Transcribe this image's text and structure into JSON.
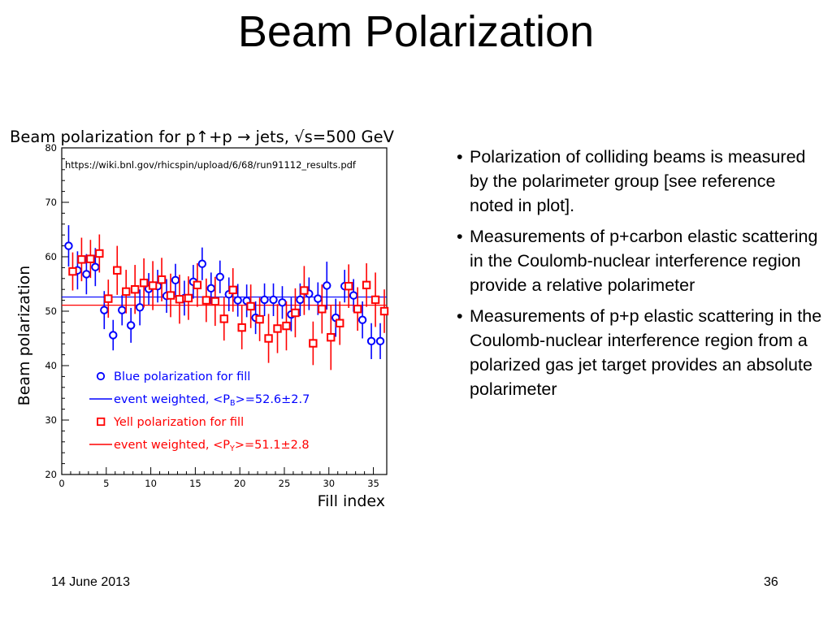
{
  "slide": {
    "title": "Beam Polarization",
    "footer_date": "14 June 2013",
    "page_number": "36"
  },
  "bullets": [
    "Polarization of colliding beams is measured by the polarimeter group [see reference noted in plot].",
    "Measurements of p+carbon elastic scattering in the Coulomb-nuclear interference region provide a relative polarimeter",
    "Measurements of p+p elastic scattering in the Coulomb-nuclear interference region from a polarized gas jet target provides an absolute polarimeter"
  ],
  "chart_data": {
    "type": "scatter",
    "title": "Beam polarization for p↑+p → jets, √s=500 GeV",
    "annotation": "https://wiki.bnl.gov/rhicspin/upload/6/68/run91112_results.pdf",
    "xlabel": "Fill index",
    "ylabel": "Beam polarization",
    "xlim": [
      0,
      36.5
    ],
    "ylim": [
      20,
      80
    ],
    "xticks": [
      0,
      5,
      10,
      15,
      20,
      25,
      30,
      35
    ],
    "yticks": [
      20,
      30,
      40,
      50,
      60,
      70,
      80
    ],
    "legend_placement": "bottom-left",
    "series": [
      {
        "name": "Blue polarization for fill",
        "color": "#0000ff",
        "marker": "circle",
        "x": [
          1,
          2,
          3,
          4,
          5,
          6,
          7,
          8,
          9,
          10,
          11,
          12,
          13,
          14,
          15,
          16,
          17,
          18,
          19,
          20,
          21,
          22,
          23,
          24,
          25,
          26,
          27,
          28,
          29,
          30,
          31,
          32,
          33,
          34,
          35,
          36
        ],
        "y": [
          62.0,
          57.5,
          56.8,
          58.1,
          50.2,
          45.6,
          50.2,
          47.4,
          50.7,
          54.1,
          54.6,
          52.8,
          55.7,
          52.4,
          55.4,
          58.7,
          54.2,
          56.3,
          53.1,
          52.0,
          51.9,
          48.8,
          52.1,
          52.1,
          51.6,
          49.4,
          52.1,
          53.2,
          52.3,
          54.7,
          48.8,
          54.6,
          52.9,
          48.4,
          44.5,
          44.5
        ],
        "err": [
          3.8,
          3.5,
          3.7,
          3.5,
          3.5,
          2.8,
          2.8,
          3.2,
          3.3,
          2.9,
          3.0,
          3.1,
          3.0,
          3.2,
          3.1,
          3.0,
          2.9,
          3.0,
          3.1,
          3.0,
          3.0,
          3.0,
          3.0,
          3.0,
          3.0,
          3.1,
          3.0,
          3.0,
          3.0,
          4.4,
          3.5,
          3.0,
          3.0,
          3.4,
          3.3,
          3.3
        ]
      },
      {
        "name": "Yell polarization for fill",
        "color": "#ff0000",
        "marker": "square",
        "x": [
          1,
          2,
          3,
          4,
          5,
          6,
          7,
          8,
          9,
          10,
          11,
          12,
          13,
          14,
          15,
          16,
          17,
          18,
          19,
          20,
          21,
          22,
          23,
          24,
          25,
          26,
          27,
          28,
          29,
          30,
          31,
          32,
          33,
          34,
          35,
          36
        ],
        "y": [
          57.3,
          59.5,
          59.6,
          60.6,
          52.3,
          57.5,
          53.6,
          54.0,
          55.2,
          54.7,
          55.8,
          52.9,
          52.2,
          52.4,
          54.8,
          52.0,
          51.8,
          48.6,
          53.9,
          47.0,
          50.9,
          48.5,
          45.0,
          46.8,
          47.3,
          49.7,
          53.8,
          44.1,
          50.4,
          45.2,
          47.8,
          54.6,
          50.4,
          54.8,
          52.1,
          50.0
        ],
        "err": [
          3.5,
          4.0,
          3.5,
          3.5,
          3.5,
          4.5,
          4.0,
          4.5,
          4.5,
          4.5,
          4.0,
          4.0,
          4.5,
          4.0,
          4.0,
          4.0,
          4.5,
          4.0,
          4.0,
          4.0,
          4.0,
          4.0,
          4.5,
          4.5,
          4.5,
          4.5,
          4.5,
          4.0,
          4.5,
          6.0,
          4.0,
          4.0,
          4.0,
          4.0,
          5.0,
          4.0
        ]
      }
    ],
    "reference_lines": [
      {
        "name": "event weighted, <P_B>=52.6±2.7",
        "label_prefix": "event weighted, <P",
        "label_sub": "B",
        "label_suffix": ">=52.6±2.7",
        "value": 52.6,
        "color": "#0000ff"
      },
      {
        "name": "event weighted, <P_Y>=51.1±2.8",
        "label_prefix": "event weighted, <P",
        "label_sub": "Y",
        "label_suffix": ">=51.1±2.8",
        "value": 51.1,
        "color": "#ff0000"
      }
    ]
  }
}
